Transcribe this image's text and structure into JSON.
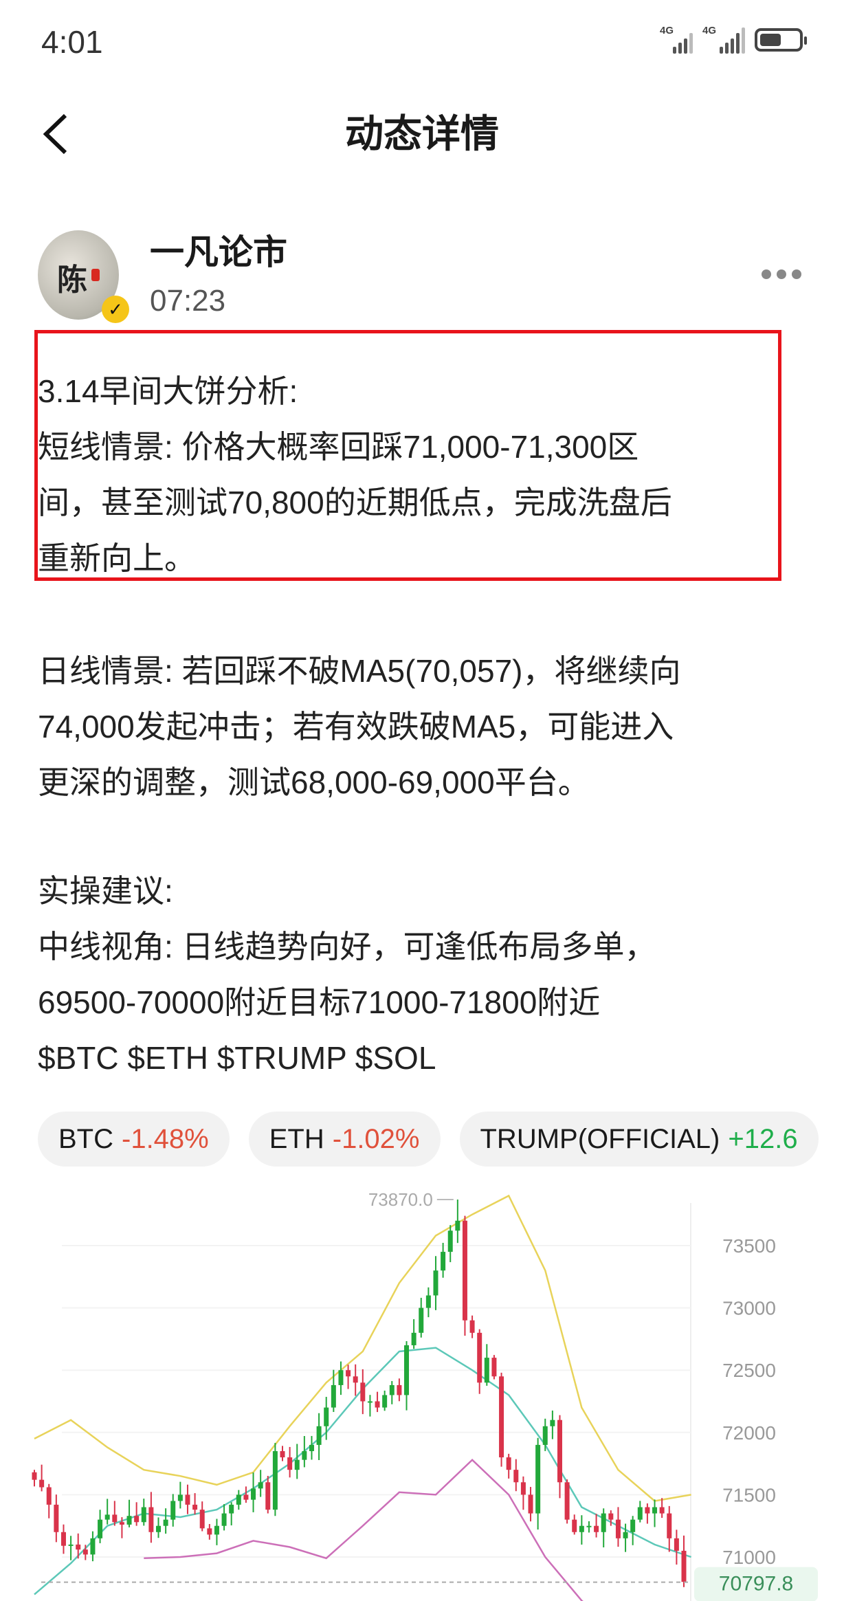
{
  "status_bar": {
    "time": "4:01",
    "network1": "4G",
    "network2": "4G",
    "battery_level": 0.55
  },
  "header": {
    "title": "动态详情",
    "back_icon": "chevron-left-icon"
  },
  "post": {
    "author": "一凡论市",
    "time": "07:23",
    "avatar_char": "陈",
    "verified_icon": "verified-badge-icon",
    "more_icon": "more-dots-icon",
    "highlight_color": "#e8141b",
    "highlighted_lines": [
      "3.14早间大饼分析:",
      "短线情景: 价格大概率回踩71,000-71,300区",
      "间，甚至测试70,800的近期低点，完成洗盘后",
      "重新向上。"
    ],
    "daily_lines": [
      "日线情景: 若回踩不破MA5(70,057)，将继续向",
      "74,000发起冲击；若有效跌破MA5，可能进入",
      "更深的调整，测试68,000-69,000平台。"
    ],
    "advice_lines": [
      "实操建议:",
      "中线视角: 日线趋势向好，可逢低布局多单，",
      "69500-70000附近目标71000-71800附近",
      "$BTC $ETH $TRUMP $SOL"
    ]
  },
  "chips": [
    {
      "symbol": "BTC",
      "change": "-1.48%",
      "direction": "down"
    },
    {
      "symbol": "ETH",
      "change": "-1.02%",
      "direction": "down"
    },
    {
      "symbol": "TRUMP(OFFICIAL)",
      "change": "+12.6",
      "direction": "up"
    }
  ],
  "colors": {
    "up": "#1fae4b",
    "down": "#e0513b",
    "candle_up": "#22a83a",
    "candle_down": "#d9334a",
    "upper_band": "#e8d35a",
    "middle_band": "#5cc8b8",
    "lower_band": "#cc6fb8"
  },
  "chart_data": {
    "type": "candlestick",
    "ylim": [
      70700,
      73950
    ],
    "y_ticks": [
      "73500",
      "73000",
      "72500",
      "72000",
      "71500",
      "71000"
    ],
    "y_tick_values": [
      73500,
      73000,
      72500,
      72000,
      71500,
      71000
    ],
    "high_marker": {
      "label": "73870.0",
      "value": 73870
    },
    "last_price": {
      "label": "70797.8",
      "value": 70797.8
    },
    "closes": [
      71620,
      71560,
      71420,
      71200,
      71090,
      71100,
      71060,
      71020,
      71150,
      71300,
      71340,
      71280,
      71260,
      71330,
      71280,
      71400,
      71200,
      71250,
      71300,
      71450,
      71500,
      71420,
      71380,
      71230,
      71180,
      71250,
      71350,
      71420,
      71500,
      71460,
      71550,
      71600,
      71380,
      71850,
      71800,
      71700,
      71780,
      71850,
      71900,
      72050,
      72200,
      72380,
      72500,
      72450,
      72400,
      72250,
      72250,
      72200,
      72300,
      72380,
      72300,
      72700,
      72800,
      73000,
      73100,
      73300,
      73450,
      73620,
      73700,
      72900,
      72800,
      72400,
      72600,
      72450,
      71800,
      71700,
      71600,
      71500,
      71350,
      71900,
      72050,
      72100,
      71600,
      71300,
      71200,
      71250,
      71250,
      71200,
      71350,
      71300,
      71150,
      71200,
      71300,
      71400,
      71350,
      71400,
      71350,
      71150,
      71050,
      70800
    ],
    "band_sample_every": 5,
    "upper_band": [
      71950,
      72100,
      71880,
      71700,
      71650,
      71580,
      71680,
      72050,
      72400,
      72650,
      73200,
      73580,
      73750,
      73900,
      73300,
      72200,
      71700,
      71450,
      71500
    ],
    "middle_band": [
      70700,
      70950,
      71250,
      71350,
      71320,
      71380,
      71550,
      71750,
      72000,
      72350,
      72650,
      72680,
      72500,
      72300,
      71900,
      71400,
      71250,
      71100,
      71000
    ],
    "lower_band": [
      null,
      null,
      null,
      70990,
      71000,
      71030,
      71130,
      71080,
      70990,
      71250,
      71520,
      71500,
      71780,
      71500,
      71000,
      70650,
      70400,
      70300,
      70300
    ]
  }
}
